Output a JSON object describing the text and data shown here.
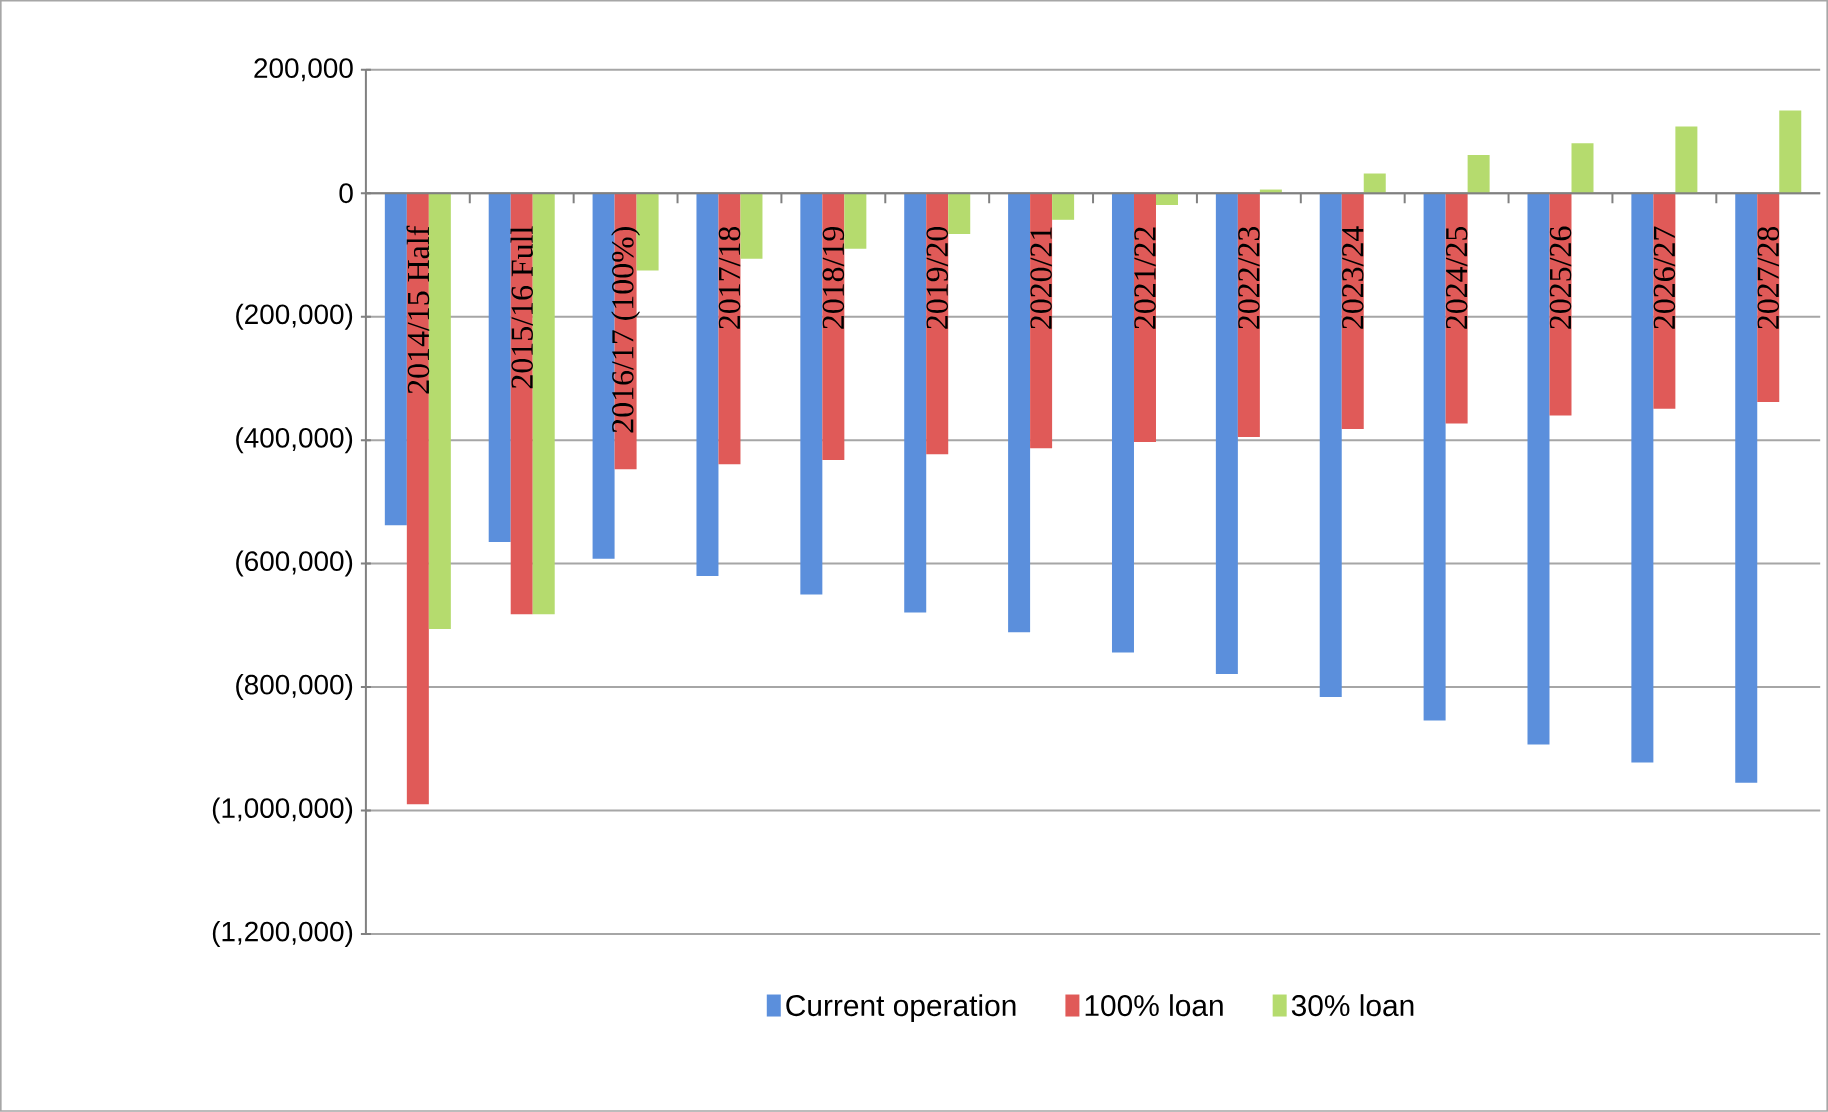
{
  "chart_data": {
    "type": "bar",
    "categories": [
      "2014/15 Half",
      "2015/16 Full",
      "2016/17 (100%)",
      "2017/18",
      "2018/19",
      "2019/20",
      "2020/21",
      "2021/22",
      "2022/23",
      "2023/24",
      "2024/25",
      "2025/26",
      "2026/27",
      "2027/28"
    ],
    "series": [
      {
        "name": "Current operation",
        "color": "#5b8fdc",
        "values": [
          -538000,
          -565000,
          -592000,
          -620000,
          -650000,
          -679000,
          -711000,
          -744000,
          -779000,
          -816000,
          -854000,
          -893000,
          -922000,
          -955000
        ]
      },
      {
        "name": "100% loan",
        "color": "#e05a58",
        "values": [
          -990000,
          -682000,
          -447000,
          -439000,
          -432000,
          -423000,
          -413000,
          -403000,
          -395000,
          -382000,
          -373000,
          -360000,
          -349000,
          -338000
        ]
      },
      {
        "name": "30% loan",
        "color": "#b5db6e",
        "values": [
          -706000,
          -682000,
          -125000,
          -106000,
          -90000,
          -66000,
          -43000,
          -19000,
          6000,
          32000,
          62000,
          81000,
          108000,
          134000
        ]
      }
    ],
    "ylim": [
      -1200000,
      200000
    ],
    "yticks": [
      {
        "value": -1200000,
        "label": "(1,200,000)"
      },
      {
        "value": -1000000,
        "label": "(1,000,000)"
      },
      {
        "value": -800000,
        "label": "(800,000)"
      },
      {
        "value": -600000,
        "label": "(600,000)"
      },
      {
        "value": -400000,
        "label": "(400,000)"
      },
      {
        "value": -200000,
        "label": "(200,000)"
      },
      0,
      {
        "value": 200000,
        "label": "200,000"
      }
    ],
    "grid": "y",
    "legend": "bottom"
  }
}
